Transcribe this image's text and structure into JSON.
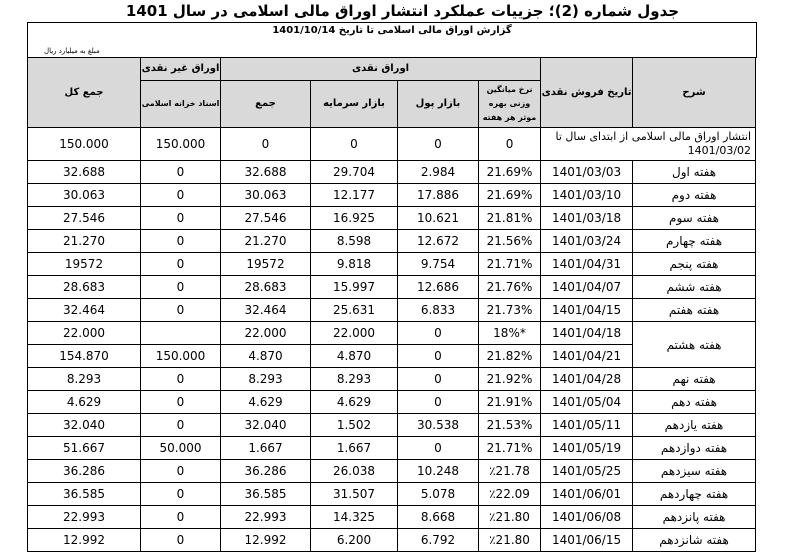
{
  "title": "جدول شماره (2)؛ جزییات عملکرد انتشار اوراق مالی اسلامی در سال 1401",
  "subtitle": "گزارش اوراق مالی اسلامی تا تاریخ 1401/10/14",
  "unit": "مبلغ به میلیارد ریال",
  "headers": {
    "desc": "شرح",
    "date": "تاریخ فروش نقدی",
    "cash": "اوراق نقدی",
    "rate": "نرخ میانگین وزنی بهره موثر هر هفته",
    "money": "بازار پول",
    "capital": "بازار سرمایه",
    "sum": "جمع",
    "noncash": "اوراق غیر نقدی",
    "treasury": "اسناد خزانه اسلامی",
    "total": "جمع کل"
  },
  "first_row": {
    "desc": "انتشار اوراق مالی اسلامی از ابتدای سال تا 1401/03/02",
    "rate": "0",
    "money": "0",
    "capital": "0",
    "sum": "0",
    "treasury": "150.000",
    "total": "150.000"
  },
  "rows": [
    {
      "desc": "هفته اول",
      "date": "1401/03/03",
      "rate": "21.69%",
      "money": "2.984",
      "capital": "29.704",
      "sum": "32.688",
      "treasury": "0",
      "total": "32.688"
    },
    {
      "desc": "هفته دوم",
      "date": "1401/03/10",
      "rate": "21.69%",
      "money": "17.886",
      "capital": "12.177",
      "sum": "30.063",
      "treasury": "0",
      "total": "30.063"
    },
    {
      "desc": "هفته سوم",
      "date": "1401/03/18",
      "rate": "21.81%",
      "money": "10.621",
      "capital": "16.925",
      "sum": "27.546",
      "treasury": "0",
      "total": "27.546"
    },
    {
      "desc": "هفته چهارم",
      "date": "1401/03/24",
      "rate": "21.56%",
      "money": "12.672",
      "capital": "8.598",
      "sum": "21.270",
      "treasury": "0",
      "total": "21.270"
    },
    {
      "desc": "هفته پنجم",
      "date": "1401/04/31",
      "rate": "21.71%",
      "money": "9.754",
      "capital": "9.818",
      "sum": "19572",
      "treasury": "0",
      "total": "19572"
    },
    {
      "desc": "هفته ششم",
      "date": "1401/04/07",
      "rate": "21.76%",
      "money": "12.686",
      "capital": "15.997",
      "sum": "28.683",
      "treasury": "0",
      "total": "28.683"
    },
    {
      "desc": "هفته هفتم",
      "date": "1401/04/15",
      "rate": "21.73%",
      "money": "6.833",
      "capital": "25.631",
      "sum": "32.464",
      "treasury": "0",
      "total": "32.464"
    },
    {
      "desc": "هفته هشتم",
      "date": "1401/04/18",
      "rate": "18%*",
      "money": "0",
      "capital": "22.000",
      "sum": "22.000",
      "treasury": "",
      "total": "22.000",
      "span": 2
    },
    {
      "date": "1401/04/21",
      "rate": "21.82%",
      "money": "0",
      "capital": "4.870",
      "sum": "4.870",
      "treasury": "150.000",
      "total": "154.870"
    },
    {
      "desc": "هفته نهم",
      "date": "1401/04/28",
      "rate": "21.92%",
      "money": "0",
      "capital": "8.293",
      "sum": "8.293",
      "treasury": "0",
      "total": "8.293"
    },
    {
      "desc": "هفته دهم",
      "date": "1401/05/04",
      "rate": "21.91%",
      "money": "0",
      "capital": "4.629",
      "sum": "4.629",
      "treasury": "0",
      "total": "4.629"
    },
    {
      "desc": "هفته یازدهم",
      "date": "1401/05/11",
      "rate": "21.53%",
      "money": "30.538",
      "capital": "1.502",
      "sum": "32.040",
      "treasury": "0",
      "total": "32.040"
    },
    {
      "desc": "هفته دوازدهم",
      "date": "1401/05/19",
      "rate": "21.71%",
      "money": "0",
      "capital": "1.667",
      "sum": "1.667",
      "treasury": "50.000",
      "total": "51.667"
    },
    {
      "desc": "هفته سیزدهم",
      "date": "1401/05/25",
      "rate": "٪21.78",
      "money": "10.248",
      "capital": "26.038",
      "sum": "36.286",
      "treasury": "0",
      "total": "36.286"
    },
    {
      "desc": "هفته چهاردهم",
      "date": "1401/06/01",
      "rate": "٪22.09",
      "money": "5.078",
      "capital": "31.507",
      "sum": "36.585",
      "treasury": "0",
      "total": "36.585"
    },
    {
      "desc": "هفته پانزدهم",
      "date": "1401/06/08",
      "rate": "٪21.80",
      "money": "8.668",
      "capital": "14.325",
      "sum": "22.993",
      "treasury": "0",
      "total": "22.993"
    },
    {
      "desc": "هفته شانزدهم",
      "date": "1401/06/15",
      "rate": "٪21.80",
      "money": "6.792",
      "capital": "6.200",
      "sum": "12.992",
      "treasury": "0",
      "total": "12.992"
    }
  ]
}
